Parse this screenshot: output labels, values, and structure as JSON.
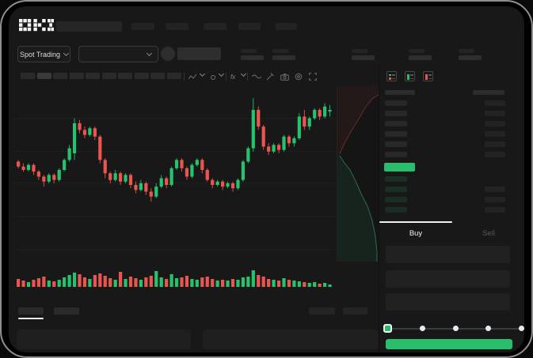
{
  "app": {
    "name": "OKX",
    "logo": "OKX"
  },
  "colors": {
    "green": "#2abd6e",
    "red": "#e8544f",
    "candle_green": "#26c26d",
    "candle_red": "#ea5550",
    "bid_row": "#1a2e23",
    "ask_row": "#282828",
    "amount_bar": "#232323",
    "grid": "#202020",
    "screen_bg": "#181818",
    "depth_ask_fill": "rgba(234,85,80,0.07)",
    "depth_ask_stroke": "rgba(234,85,80,0.35)",
    "depth_bid_fill": "rgba(42,189,110,0.09)",
    "depth_bid_stroke": "rgba(64,200,150,0.45)"
  },
  "header": {
    "nav_placeholder_widths": [
      29,
      29,
      29,
      28,
      27
    ],
    "search_placeholder_width": 83
  },
  "market_bar": {
    "instrument_selector_label": "Spot Trading",
    "stats_left_count": 2,
    "stats_right_count": 3
  },
  "toolbar": {
    "timeframe_count": 10,
    "active_timeframe_index": 1,
    "icons": [
      "candle-style-icon",
      "overlay-style-icon",
      "indicators-icon",
      "wave-icon",
      "draw-icon",
      "camera-icon",
      "settings-icon",
      "fullscreen-icon"
    ]
  },
  "chart_data": {
    "type": "candlestick",
    "title": "",
    "ylim": [
      0,
      100
    ],
    "grid_prices": [
      4,
      24,
      44,
      63,
      83
    ],
    "candles": [
      [
        57,
        58,
        53,
        54
      ],
      [
        54,
        56,
        51,
        52
      ],
      [
        52,
        56,
        51,
        55
      ],
      [
        55,
        56,
        49,
        51
      ],
      [
        51,
        52,
        46,
        48
      ],
      [
        48,
        49,
        42,
        45
      ],
      [
        45,
        50,
        44,
        49
      ],
      [
        49,
        50,
        44,
        46
      ],
      [
        46,
        53,
        45,
        52
      ],
      [
        52,
        59,
        51,
        58
      ],
      [
        58,
        67,
        57,
        65
      ],
      [
        62,
        83,
        58,
        80
      ],
      [
        80,
        82,
        74,
        76
      ],
      [
        76,
        78,
        71,
        73
      ],
      [
        73,
        78,
        72,
        77
      ],
      [
        77,
        78,
        70,
        72
      ],
      [
        72,
        73,
        56,
        58
      ],
      [
        58,
        59,
        47,
        50
      ],
      [
        50,
        51,
        44,
        46
      ],
      [
        46,
        52,
        45,
        50
      ],
      [
        50,
        51,
        43,
        45
      ],
      [
        45,
        50,
        44,
        49
      ],
      [
        49,
        50,
        41,
        43
      ],
      [
        43,
        45,
        38,
        40
      ],
      [
        40,
        46,
        39,
        44
      ],
      [
        44,
        45,
        37,
        39
      ],
      [
        39,
        41,
        33,
        36
      ],
      [
        36,
        44,
        35,
        42
      ],
      [
        42,
        49,
        41,
        47
      ],
      [
        47,
        48,
        41,
        43
      ],
      [
        43,
        54,
        42,
        53
      ],
      [
        53,
        59,
        52,
        58
      ],
      [
        58,
        59,
        51,
        53
      ],
      [
        53,
        54,
        46,
        48
      ],
      [
        48,
        56,
        47,
        55
      ],
      [
        55,
        59,
        54,
        58
      ],
      [
        58,
        59,
        50,
        52
      ],
      [
        52,
        53,
        45,
        46
      ],
      [
        46,
        47,
        41,
        43
      ],
      [
        43,
        46,
        42,
        45
      ],
      [
        45,
        46,
        40,
        42
      ],
      [
        42,
        45,
        41,
        44
      ],
      [
        44,
        45,
        39,
        41
      ],
      [
        41,
        47,
        40,
        46
      ],
      [
        46,
        58,
        45,
        57
      ],
      [
        57,
        66,
        56,
        65
      ],
      [
        65,
        95,
        63,
        88
      ],
      [
        88,
        90,
        76,
        78
      ],
      [
        78,
        79,
        64,
        66
      ],
      [
        66,
        68,
        61,
        63
      ],
      [
        63,
        68,
        62,
        67
      ],
      [
        67,
        68,
        62,
        64
      ],
      [
        64,
        73,
        63,
        72
      ],
      [
        72,
        73,
        66,
        68
      ],
      [
        68,
        72,
        66,
        71
      ],
      [
        71,
        86,
        70,
        84
      ],
      [
        84,
        88,
        76,
        78
      ],
      [
        78,
        84,
        76,
        83
      ],
      [
        83,
        89,
        82,
        88
      ],
      [
        88,
        89,
        82,
        84
      ],
      [
        84,
        92,
        83,
        90
      ],
      [
        87,
        91,
        84,
        88
      ]
    ],
    "volumes": [
      10,
      8,
      6,
      9,
      11,
      13,
      8,
      7,
      9,
      12,
      15,
      18,
      16,
      12,
      10,
      15,
      17,
      14,
      11,
      9,
      19,
      10,
      13,
      11,
      9,
      12,
      14,
      20,
      12,
      10,
      16,
      11,
      12,
      14,
      10,
      9,
      12,
      13,
      10,
      8,
      9,
      8,
      10,
      9,
      12,
      13,
      21,
      15,
      13,
      10,
      9,
      8,
      11,
      9,
      8,
      7,
      6,
      5,
      6,
      4,
      5,
      3
    ],
    "depth_profile": {
      "asks": [
        [
          53,
          10
        ],
        [
          44,
          16
        ],
        [
          36,
          26
        ],
        [
          28,
          40
        ],
        [
          18,
          56
        ],
        [
          8,
          74
        ],
        [
          3,
          86
        ]
      ],
      "bids": [
        [
          3,
          88
        ],
        [
          8,
          96
        ],
        [
          16,
          106
        ],
        [
          22,
          118
        ],
        [
          30,
          136
        ],
        [
          38,
          152
        ],
        [
          44,
          170
        ],
        [
          48,
          190
        ],
        [
          50,
          210
        ],
        [
          50,
          222
        ]
      ]
    }
  },
  "order_book": {
    "view_icons": [
      "book-both-icon",
      "book-bids-icon",
      "book-asks-icon"
    ],
    "ask_row_count": 6,
    "bid_row_count": 4,
    "first_bid_row_has_amount": false,
    "last_price_highlight_color": "#2abd6e"
  },
  "trade_panel": {
    "tabs": [
      {
        "label": "Buy",
        "active": true
      },
      {
        "label": "Sell",
        "active": false
      }
    ],
    "field_count": 3,
    "slider": {
      "stops": 5,
      "active_stop": 0
    },
    "submit_color": "#2abd6e"
  },
  "bottom_bar": {
    "tab_count": 2,
    "active_tab_index": 0,
    "right_placeholder_count": 2,
    "input_count": 2
  }
}
